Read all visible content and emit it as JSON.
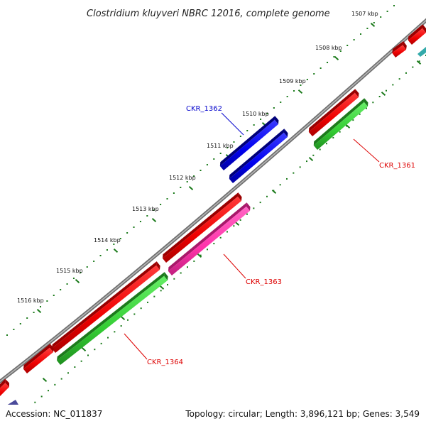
{
  "title": "Clostridium kluyveri NBRC 12016, complete genome",
  "accession_label": "Accession: NC_011837",
  "summary_label": "Topology: circular; Length: 3,896,121 bp; Genes: 3,549",
  "kbp_ticks": [
    {
      "label": "1507 kbp"
    },
    {
      "label": "1508 kbp"
    },
    {
      "label": "1509 kbp"
    },
    {
      "label": "1510 kbp"
    },
    {
      "label": "1511 kbp"
    },
    {
      "label": "1512 kbp"
    },
    {
      "label": "1513 kbp"
    },
    {
      "label": "1514 kbp"
    },
    {
      "label": "1515 kbp"
    },
    {
      "label": "1516 kbp"
    }
  ],
  "gene_labels": [
    {
      "name": "CKR_1361",
      "color": "#dd0000"
    },
    {
      "name": "CKR_1362",
      "color": "#0000cc"
    },
    {
      "name": "CKR_1363",
      "color": "#dd0000"
    },
    {
      "name": "CKR_1364",
      "color": "#dd0000"
    }
  ],
  "colors": {
    "backbone": "#808080",
    "gene_red": "#ee0000",
    "gene_blue": "#0000ee",
    "gene_green": "#33cc33",
    "gene_pink": "#ff33aa",
    "dots": "#1a7a1a"
  }
}
